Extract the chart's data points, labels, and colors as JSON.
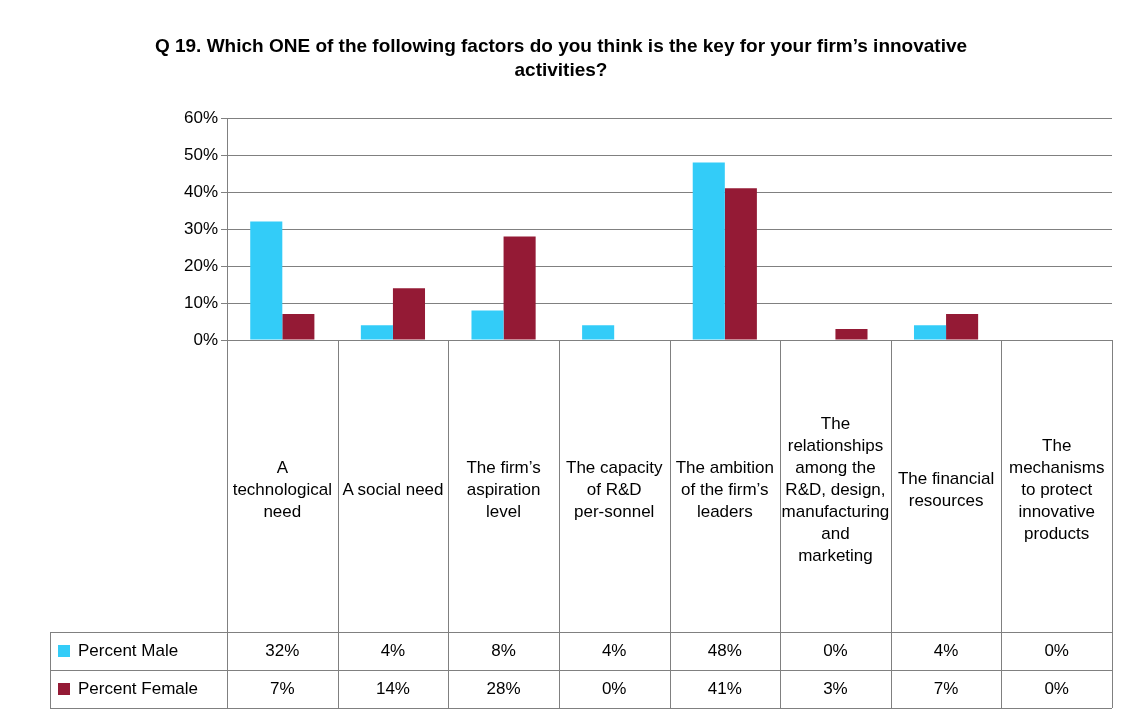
{
  "chart_data": {
    "type": "bar",
    "title": "Q 19. Which ONE of the following factors do you think is the key for your firm’s innovative activities?",
    "categories": [
      "A technological need",
      "A social need",
      "The firm’s aspiration level",
      "The capacity of R&D per-sonnel",
      "The ambition of the firm’s leaders",
      "The relationships among the R&D, design, manufacturing and marketing",
      "The financial resources",
      "The mechanisms to protect innovative products"
    ],
    "series": [
      {
        "name": "Percent Male",
        "color": "#33ccf8",
        "values": [
          32,
          4,
          8,
          4,
          48,
          0,
          4,
          0
        ],
        "value_labels": [
          "32%",
          "4%",
          "8%",
          "4%",
          "48%",
          "0%",
          "4%",
          "0%"
        ]
      },
      {
        "name": "Percent Female",
        "color": "#941a35",
        "values": [
          7,
          14,
          28,
          0,
          41,
          3,
          7,
          0
        ],
        "value_labels": [
          "7%",
          "14%",
          "28%",
          "0%",
          "41%",
          "3%",
          "7%",
          "0%"
        ]
      }
    ],
    "ylim": [
      0,
      60
    ],
    "yticks": [
      {
        "value": 0,
        "label": "0%"
      },
      {
        "value": 10,
        "label": "10%"
      },
      {
        "value": 20,
        "label": "20%"
      },
      {
        "value": 30,
        "label": "30%"
      },
      {
        "value": 40,
        "label": "40%"
      },
      {
        "value": 50,
        "label": "50%"
      },
      {
        "value": 60,
        "label": "60%"
      }
    ],
    "grid": "y",
    "legend": "bottom"
  }
}
